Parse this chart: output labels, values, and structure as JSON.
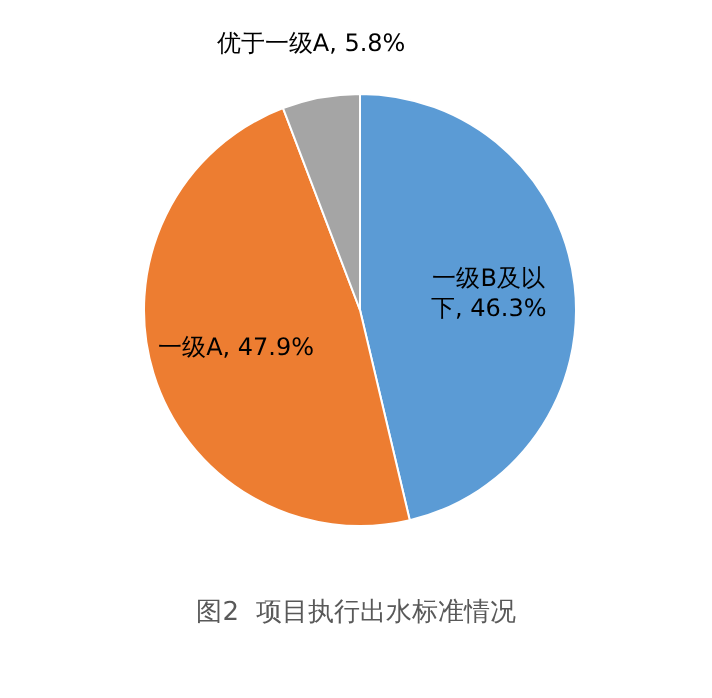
{
  "chart_data": {
    "type": "pie",
    "title": "图2  项目执行出水标准情况",
    "categories": [
      "一级B及以下",
      "一级A",
      "优于一级A"
    ],
    "values": [
      46.3,
      47.9,
      5.8
    ],
    "value_labels": [
      "46.3%",
      "47.9%",
      "5.8%"
    ],
    "colors": [
      "#5b9bd5",
      "#ed7d31",
      "#a5a5a5"
    ],
    "legend": false
  }
}
